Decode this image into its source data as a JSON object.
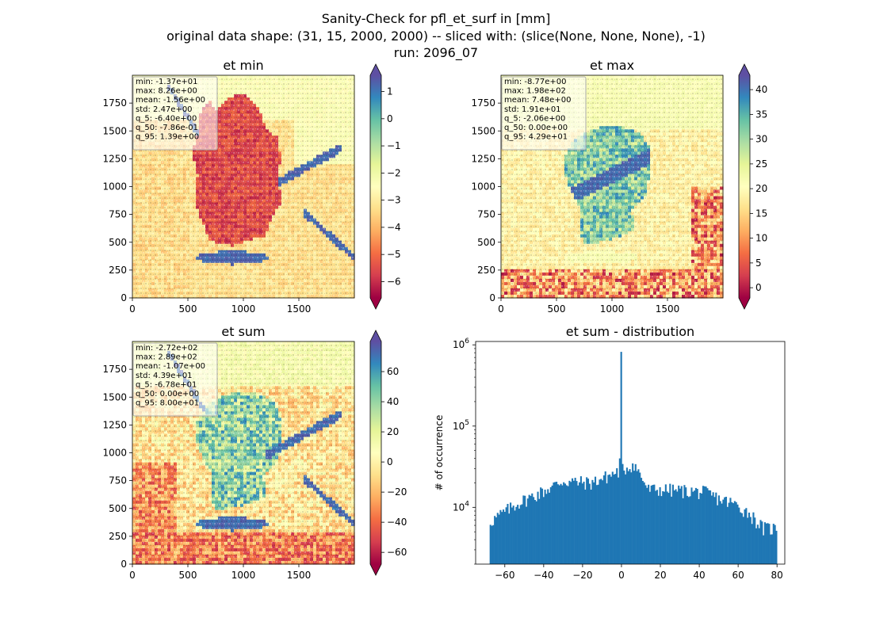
{
  "figure": {
    "title_lines": [
      "Sanity-Check for pfl_et_surf in [mm]",
      "original data shape: (31, 15, 2000, 2000) -- sliced with: (slice(None, None, None), -1)",
      "run: 2096_07"
    ]
  },
  "chart_data": [
    {
      "type": "heatmap",
      "title": "et min",
      "xticks": [
        0,
        500,
        1000,
        1500
      ],
      "yticks": [
        0,
        250,
        500,
        750,
        1000,
        1250,
        1500,
        1750
      ],
      "xlim": [
        0,
        2000
      ],
      "ylim": [
        0,
        2000
      ],
      "colormap": "Spectral",
      "colorbar": {
        "vmin": -6.6,
        "vmax": 1.6,
        "ticks": [
          1,
          0,
          -1,
          -2,
          -3,
          -4,
          -5,
          -6
        ],
        "extend": "both"
      },
      "stats": [
        "min: -1.37e+01",
        "max: 8.26e+00",
        "mean: -1.56e+00",
        "std: 2.47e+00",
        "q_5: -6.40e+00",
        "q_50: -7.86e-01",
        "q_95: 1.39e+00"
      ]
    },
    {
      "type": "heatmap",
      "title": "et max",
      "xticks": [
        0,
        500,
        1000,
        1500
      ],
      "yticks": [
        0,
        250,
        500,
        750,
        1000,
        1250,
        1500,
        1750
      ],
      "xlim": [
        0,
        2000
      ],
      "ylim": [
        0,
        2000
      ],
      "colormap": "Spectral",
      "colorbar": {
        "vmin": -2.06,
        "vmax": 42.9,
        "ticks": [
          40,
          35,
          30,
          25,
          20,
          15,
          10,
          5,
          0
        ],
        "extend": "both"
      },
      "stats": [
        "min: -8.77e+00",
        "max: 1.98e+02",
        "mean: 7.48e+00",
        "std: 1.91e+01",
        "q_5: -2.06e+00",
        "q_50: 0.00e+00",
        "q_95: 4.29e+01"
      ]
    },
    {
      "type": "heatmap",
      "title": "et sum",
      "xticks": [
        0,
        500,
        1000,
        1500
      ],
      "yticks": [
        0,
        250,
        500,
        750,
        1000,
        1250,
        1500,
        1750
      ],
      "xlim": [
        0,
        2000
      ],
      "ylim": [
        0,
        2000
      ],
      "colormap": "Spectral",
      "colorbar": {
        "vmin": -67.8,
        "vmax": 80.0,
        "ticks": [
          60,
          40,
          20,
          0,
          -20,
          -40,
          -60
        ],
        "extend": "both"
      },
      "stats": [
        "min: -2.72e+02",
        "max: 2.89e+02",
        "mean: -1.07e+00",
        "std: 4.39e+01",
        "q_5: -6.78e+01",
        "q_50: 0.00e+00",
        "q_95: 8.00e+01"
      ]
    },
    {
      "type": "bar",
      "subtype": "histogram",
      "title": "et sum - distribution",
      "ylabel": "# of occurrence",
      "yscale": "log",
      "xlim": [
        -75,
        84
      ],
      "ylim": [
        2000,
        1100000
      ],
      "xticks": [
        -60,
        -40,
        -20,
        0,
        20,
        40,
        60,
        80
      ],
      "yticks": [
        10000,
        100000,
        1000000
      ],
      "yticklabels": [
        {
          "base": "10",
          "exp": "4"
        },
        {
          "base": "10",
          "exp": "5"
        },
        {
          "base": "10",
          "exp": "6"
        }
      ],
      "bar_color": "#1f77b4",
      "bins": {
        "start": -67.8,
        "end": 80.0,
        "count": 200
      },
      "series": [
        {
          "counts_sampled_every_10_bins": [
            6700,
            8800,
            11500,
            13800,
            16800,
            21000,
            20500,
            20000,
            23500,
            28000,
            34000,
            16500,
            16500,
            16200,
            15800,
            15200,
            12500,
            11000,
            8500,
            5500
          ],
          "spike": {
            "x": 0,
            "count": 820000
          },
          "pre_spike_rise": {
            "x": -0.7,
            "count": 40000
          }
        }
      ]
    }
  ]
}
